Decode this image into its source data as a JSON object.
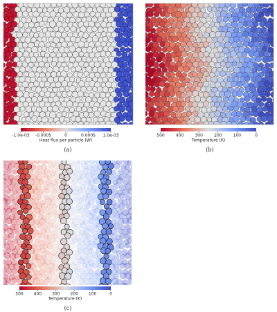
{
  "panels": [
    {
      "colorbar": {
        "ticks": [
          "-1.0e-03",
          "-0.0005",
          "0",
          "0.0005",
          "1.0e-03"
        ],
        "title": "Heat flux per particle (W)"
      },
      "caption": "(a)"
    },
    {
      "colorbar": {
        "ticks": [
          "500",
          "400",
          "300",
          "200",
          "100",
          "0"
        ],
        "title": "Temperature (K)"
      },
      "caption": "(b)"
    },
    {
      "colorbar": {
        "ticks": [
          "500",
          "400",
          "300",
          "200",
          "100",
          "0"
        ],
        "title": "Temperature (K)"
      },
      "caption": "(c)"
    }
  ]
}
